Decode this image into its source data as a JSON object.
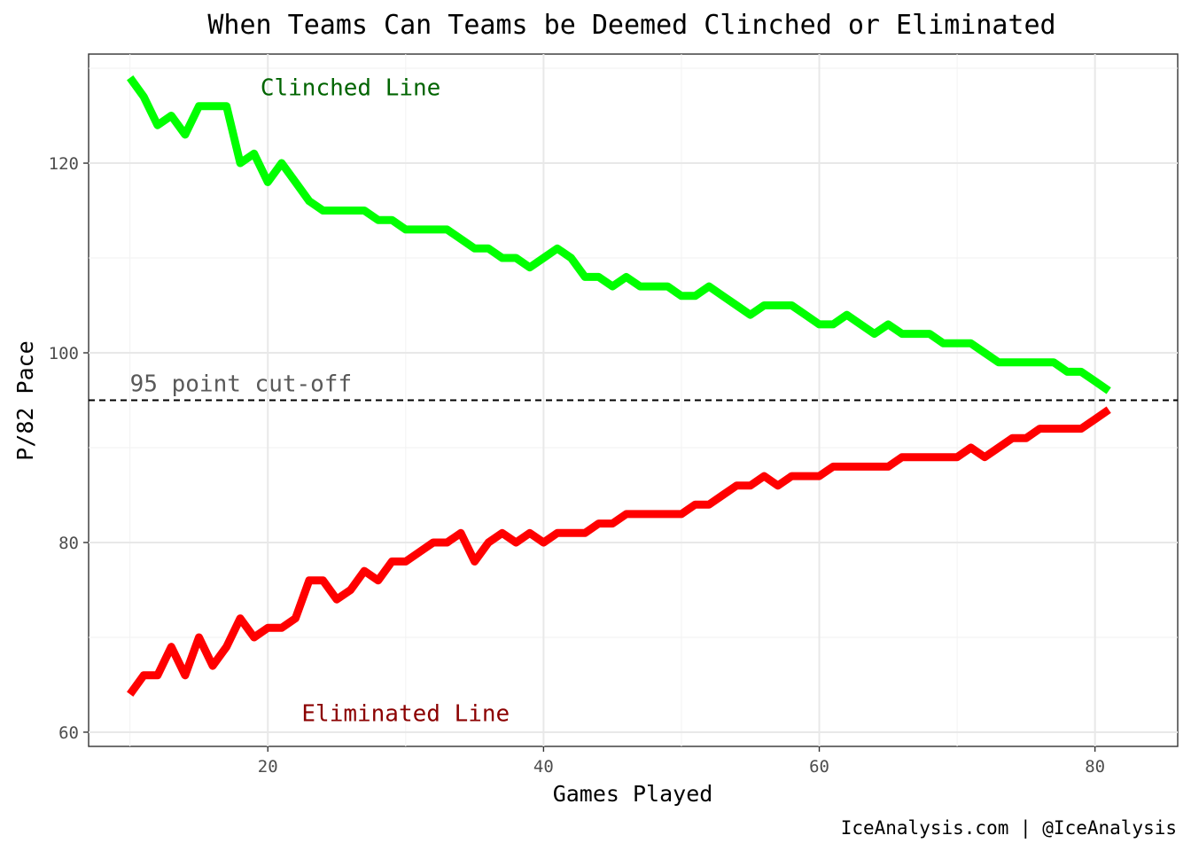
{
  "chart_data": {
    "type": "line",
    "title": "When Teams Can Teams be Deemed Clinched or Eliminated",
    "xlabel": "Games Played",
    "ylabel": "P/82 Pace",
    "caption": "IceAnalysis.com | @IceAnalysis",
    "xlim": [
      7,
      86
    ],
    "ylim": [
      58.5,
      131.5
    ],
    "x_ticks": [
      20,
      40,
      60,
      80
    ],
    "y_ticks": [
      60,
      80,
      100,
      120
    ],
    "grid": true,
    "reference_line": {
      "y": 95,
      "label": "95 point cut-off",
      "color": "#595959"
    },
    "series": [
      {
        "name": "Clinched Line",
        "color": "#00ff00",
        "label_color": "#006400",
        "label_x": 26,
        "label_y": 128,
        "x": [
          10,
          11,
          12,
          13,
          14,
          15,
          16,
          17,
          18,
          19,
          20,
          21,
          22,
          23,
          24,
          25,
          26,
          27,
          28,
          29,
          30,
          31,
          32,
          33,
          34,
          35,
          36,
          37,
          38,
          39,
          40,
          41,
          42,
          43,
          44,
          45,
          46,
          47,
          48,
          49,
          50,
          51,
          52,
          53,
          54,
          55,
          56,
          57,
          58,
          59,
          60,
          61,
          62,
          63,
          64,
          65,
          66,
          67,
          68,
          69,
          70,
          71,
          72,
          73,
          74,
          75,
          76,
          77,
          78,
          79,
          80,
          81
        ],
        "values": [
          129,
          127,
          124,
          125,
          123,
          126,
          126,
          126,
          120,
          121,
          118,
          120,
          118,
          116,
          115,
          115,
          115,
          115,
          114,
          114,
          113,
          113,
          113,
          113,
          112,
          111,
          111,
          110,
          110,
          109,
          110,
          111,
          110,
          108,
          108,
          107,
          108,
          107,
          107,
          107,
          106,
          106,
          107,
          106,
          105,
          104,
          105,
          105,
          105,
          104,
          103,
          103,
          104,
          103,
          102,
          103,
          102,
          102,
          102,
          101,
          101,
          101,
          100,
          99,
          99,
          99,
          99,
          99,
          98,
          98,
          97,
          96
        ]
      },
      {
        "name": "Eliminated Line",
        "color": "#ff0000",
        "label_color": "#8b0000",
        "label_x": 30,
        "label_y": 62,
        "x": [
          10,
          11,
          12,
          13,
          14,
          15,
          16,
          17,
          18,
          19,
          20,
          21,
          22,
          23,
          24,
          25,
          26,
          27,
          28,
          29,
          30,
          31,
          32,
          33,
          34,
          35,
          36,
          37,
          38,
          39,
          40,
          41,
          42,
          43,
          44,
          45,
          46,
          47,
          48,
          49,
          50,
          51,
          52,
          53,
          54,
          55,
          56,
          57,
          58,
          59,
          60,
          61,
          62,
          63,
          64,
          65,
          66,
          67,
          68,
          69,
          70,
          71,
          72,
          73,
          74,
          75,
          76,
          77,
          78,
          79,
          80,
          81
        ],
        "values": [
          64,
          66,
          66,
          69,
          66,
          70,
          67,
          69,
          72,
          70,
          71,
          71,
          72,
          76,
          76,
          74,
          75,
          77,
          76,
          78,
          78,
          79,
          80,
          80,
          81,
          78,
          80,
          81,
          80,
          81,
          80,
          81,
          81,
          81,
          82,
          82,
          83,
          83,
          83,
          83,
          83,
          84,
          84,
          85,
          86,
          86,
          87,
          86,
          87,
          87,
          87,
          88,
          88,
          88,
          88,
          88,
          89,
          89,
          89,
          89,
          89,
          90,
          89,
          90,
          91,
          91,
          92,
          92,
          92,
          92,
          93,
          94
        ]
      }
    ]
  }
}
